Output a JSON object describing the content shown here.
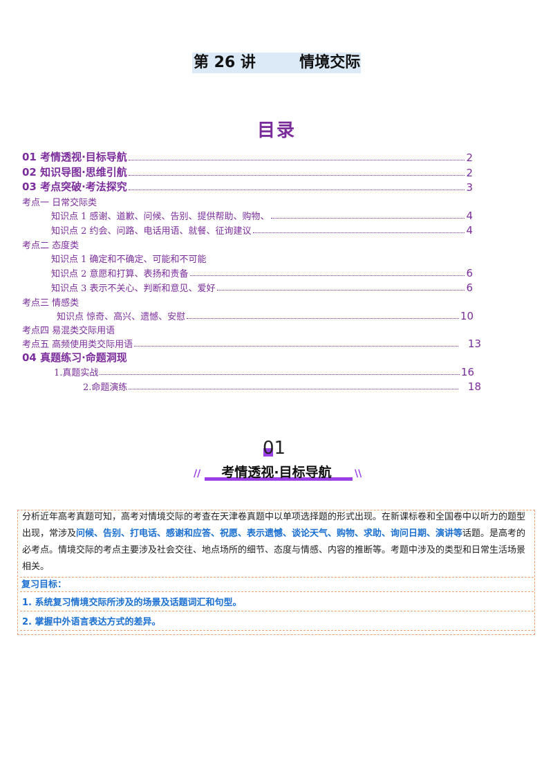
{
  "title": {
    "lecture": "第 26 讲",
    "topic": "情境交际"
  },
  "toc_heading": "目录",
  "toc": [
    {
      "label": "01  考情透视·目标导航",
      "page": "2"
    },
    {
      "label": "02  知识导图·思维引航",
      "page": "2"
    },
    {
      "label": "03  考点突破·考法探究",
      "page": "3"
    },
    {
      "label": "考点一   日常交际类",
      "page": ""
    },
    {
      "label": "知识点 1   感谢、道歉、问候、告别、提供帮助、购物、",
      "page": "4"
    },
    {
      "label": "知识点 2   约会、问路、电话用语、就餐、征询建议",
      "page": "4"
    },
    {
      "label": "考点二   态度类",
      "page": ""
    },
    {
      "label": "知识点 1   确定和不确定、可能和不可能",
      "page": ""
    },
    {
      "label": "知识点 2   意愿和打算、表扬和责备",
      "page": "6"
    },
    {
      "label": "知识点 3   表示不关心、判断和意见、爱好",
      "page": "6"
    },
    {
      "label": "考点三   情感类",
      "page": ""
    },
    {
      "label": "知识点   惊奇、高兴、遗憾、安慰",
      "page": "10"
    },
    {
      "label": "考点四   易混类交际用语",
      "page": ""
    },
    {
      "label": "考点五   高频使用类交际用语",
      "page": "13"
    },
    {
      "label": "04 真题练习·命题洞现",
      "page": ""
    },
    {
      "label": "1.真题实战",
      "page": "16"
    },
    {
      "label": "2.命题演练",
      "page": "18"
    }
  ],
  "section": {
    "number": "01",
    "title": "考情透视·目标导航",
    "slash_left": "//",
    "slash_right": "\\\\"
  },
  "intro": {
    "p1": "分析近年高考真题可知，高考对情境交际的考查在天津卷真题中以单项选择题的形式出现。在新课标卷和全国卷中以听力的题型出现，常涉及",
    "topics": "问候、告别、打电话、感谢和应答、祝愿、表示遗憾、谈论天气、购物、求助、询问日期、演讲等",
    "p2": "话题。是高考的必考点。情境交际的考点主要涉及社会交往、地点场所的细节、态度与情感、内容的推断等。考题中涉及的类型和日常生活场景相关。"
  },
  "goals": {
    "heading": "复习目标：",
    "items": [
      "1.  系统复习情境交际所涉及的场景及话题词汇和句型。",
      "2.  掌握中外语言表达方式的差异。"
    ]
  }
}
